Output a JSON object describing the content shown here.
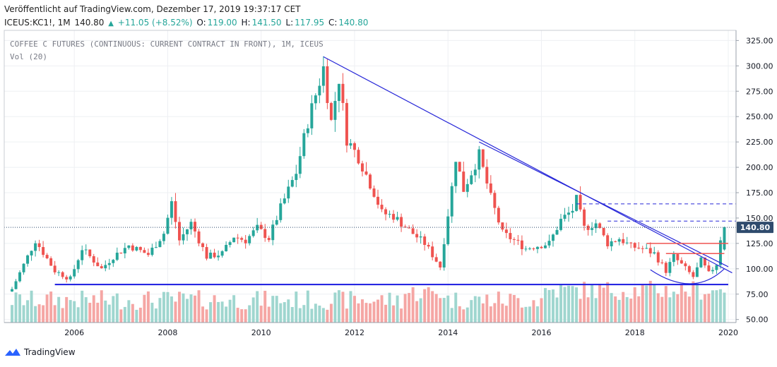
{
  "header": {
    "published": "Veröffentlicht auf TradingView.com, Dezember 17, 2019 19:37:17 CET",
    "symbol": "ICEUS:KC1!, 1M",
    "price": "140.80",
    "change": "+11.05 (+8.52%)",
    "o_label": "O:",
    "o_value": "119.00",
    "h_label": "H:",
    "h_value": "141.50",
    "l_label": "L:",
    "l_value": "117.95",
    "c_label": "C:",
    "c_value": "140.80"
  },
  "footer": {
    "brand": "TradingView"
  },
  "colors": {
    "up": "#26a69a",
    "down": "#ef5350",
    "vol_up": "#9fd6cf",
    "vol_down": "#f5a6a4",
    "trend": "#2727d8",
    "support": "#1a1ae0",
    "resistance": "#ef5350",
    "price_label_bg": "#2f4b6d"
  },
  "chart_data": {
    "type": "candlestick",
    "title": "COFFEE C FUTURES (CONTINUOUS: CURRENT CONTRACT IN FRONT), 1M, ICEUS",
    "indicator_label": "Vol (20)",
    "interval": "1M",
    "y_axis": {
      "range": [
        47,
        335
      ],
      "ticks": [
        "325.00",
        "300.00",
        "275.00",
        "250.00",
        "225.00",
        "200.00",
        "175.00",
        "150.00",
        "125.00",
        "100.00",
        "75.00",
        "50.00"
      ]
    },
    "x_axis": {
      "range": [
        "2004-07",
        "2020-03"
      ],
      "ticks": [
        "2006",
        "2008",
        "2010",
        "2012",
        "2014",
        "2016",
        "2018",
        "2020"
      ]
    },
    "last_price_label": "140.80",
    "last_price": 140.8,
    "anchors": [
      [
        "2004-09",
        80
      ],
      [
        "2005-03",
        128
      ],
      [
        "2005-08",
        98
      ],
      [
        "2005-12",
        90
      ],
      [
        "2006-03",
        120
      ],
      [
        "2006-08",
        100
      ],
      [
        "2006-11",
        112
      ],
      [
        "2007-03",
        123
      ],
      [
        "2007-08",
        114
      ],
      [
        "2007-12",
        135
      ],
      [
        "2008-02",
        165
      ],
      [
        "2008-04",
        128
      ],
      [
        "2008-07",
        145
      ],
      [
        "2008-11",
        112
      ],
      [
        "2009-03",
        115
      ],
      [
        "2009-06",
        132
      ],
      [
        "2009-09",
        128
      ],
      [
        "2009-12",
        140
      ],
      [
        "2010-03",
        130
      ],
      [
        "2010-06",
        160
      ],
      [
        "2010-10",
        195
      ],
      [
        "2011-01",
        245
      ],
      [
        "2011-05",
        298
      ],
      [
        "2011-07",
        245
      ],
      [
        "2011-09",
        288
      ],
      [
        "2011-11",
        228
      ],
      [
        "2012-02",
        210
      ],
      [
        "2012-06",
        175
      ],
      [
        "2012-08",
        155
      ],
      [
        "2012-11",
        152
      ],
      [
        "2013-03",
        138
      ],
      [
        "2013-07",
        125
      ],
      [
        "2013-10",
        108
      ],
      [
        "2013-11",
        102
      ],
      [
        "2014-02",
        180
      ],
      [
        "2014-03",
        210
      ],
      [
        "2014-05",
        178
      ],
      [
        "2014-09",
        212
      ],
      [
        "2014-12",
        170
      ],
      [
        "2015-03",
        135
      ],
      [
        "2015-06",
        128
      ],
      [
        "2015-09",
        120
      ],
      [
        "2015-11",
        122
      ],
      [
        "2016-03",
        125
      ],
      [
        "2016-06",
        148
      ],
      [
        "2016-09",
        158
      ],
      [
        "2016-10",
        168
      ],
      [
        "2016-12",
        140
      ],
      [
        "2017-03",
        145
      ],
      [
        "2017-06",
        125
      ],
      [
        "2017-09",
        130
      ],
      [
        "2017-12",
        122
      ],
      [
        "2018-03",
        120
      ],
      [
        "2018-06",
        115
      ],
      [
        "2018-09",
        98
      ],
      [
        "2018-11",
        112
      ],
      [
        "2019-02",
        100
      ],
      [
        "2019-04",
        92
      ],
      [
        "2019-06",
        108
      ],
      [
        "2019-08",
        95
      ],
      [
        "2019-10",
        105
      ],
      [
        "2019-11",
        130
      ],
      [
        "2019-12",
        140.8
      ]
    ],
    "last_candle": {
      "date": "2019-12",
      "open": 119.0,
      "high": 141.5,
      "low": 117.95,
      "close": 140.8
    },
    "annotations": {
      "support_line": {
        "from": [
          "2005-08",
          84.5
        ],
        "to": [
          "2020-01",
          84.5
        ]
      },
      "trendline_1": {
        "from": [
          "2011-05",
          309
        ],
        "to": [
          "2020-02",
          96
        ]
      },
      "trendline_2": {
        "from": [
          "2014-09",
          225
        ],
        "to": [
          "2020-01",
          102
        ]
      },
      "dashed_level_1": {
        "from": [
          "2016-10",
          164
        ],
        "to": [
          "2020-03",
          164
        ]
      },
      "dashed_level_2": {
        "from": [
          "2017-06",
          147
        ],
        "to": [
          "2020-03",
          147
        ]
      },
      "resistance_1": {
        "from": [
          "2018-04",
          125
        ],
        "to": [
          "2020-01",
          125
        ]
      },
      "resistance_2": {
        "from": [
          "2018-09",
          115
        ],
        "to": [
          "2019-12",
          115
        ]
      },
      "rounding_bottom": {
        "from": [
          "2018-05",
          99
        ],
        "mid": [
          "2019-04",
          85
        ],
        "to": [
          "2019-12",
          100
        ]
      },
      "last_price_dotted": {
        "value": 140.8
      }
    }
  }
}
